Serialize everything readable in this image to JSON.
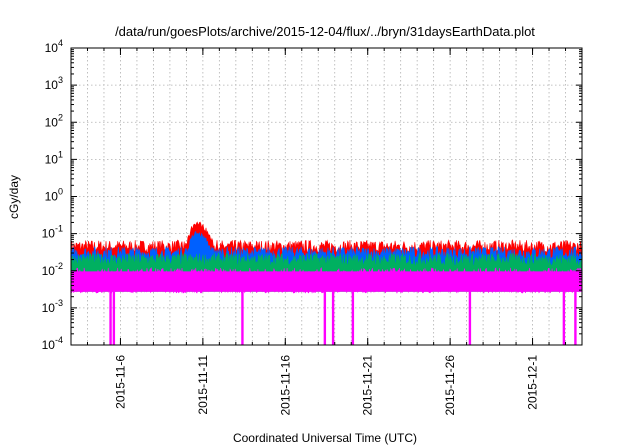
{
  "chart_data": {
    "type": "area",
    "title": "/data/run/goesPlots/archive/2015-12-04/flux/../bryn/31daysEarthData.plot",
    "xlabel": "Coordinated Universal Time (UTC)",
    "ylabel": "cGy/day",
    "yscale": "log",
    "ylim": [
      0.0001,
      10000
    ],
    "y_ticks": [
      {
        "value": 0.0001,
        "base": "10",
        "exp": "-4"
      },
      {
        "value": 0.001,
        "base": "10",
        "exp": "-3"
      },
      {
        "value": 0.01,
        "base": "10",
        "exp": "-2"
      },
      {
        "value": 0.1,
        "base": "10",
        "exp": "-1"
      },
      {
        "value": 1,
        "base": "10",
        "exp": "0"
      },
      {
        "value": 10,
        "base": "10",
        "exp": "1"
      },
      {
        "value": 100,
        "base": "10",
        "exp": "2"
      },
      {
        "value": 1000,
        "base": "10",
        "exp": "3"
      },
      {
        "value": 10000,
        "base": "10",
        "exp": "4"
      }
    ],
    "xlim": [
      "2015-11-03",
      "2015-12-04"
    ],
    "x_ticks": [
      "2015-11-6",
      "2015-11-11",
      "2015-11-16",
      "2015-11-21",
      "2015-11-26",
      "2015-12-1"
    ],
    "grid": true,
    "series": [
      {
        "color": "#ff0000",
        "baseline": 0.045,
        "peak": {
          "date": "2015-11-10.6",
          "value": 0.19
        }
      },
      {
        "color": "#0060ff",
        "baseline": 0.03,
        "peak": {
          "date": "2015-11-10.6",
          "value": 0.1
        }
      },
      {
        "color": "#00b060",
        "baseline": 0.02
      },
      {
        "color": "#ff00ff",
        "baseline": 0.008,
        "floor": 0.0028,
        "dropouts": [
          "2015-11-5.4",
          "2015-11-5.6",
          "2015-11-13.4",
          "2015-11-18.4",
          "2015-11-18.9",
          "2015-11-20.1",
          "2015-11-27.2",
          "2015-12-2.9",
          "2015-12-3.6"
        ]
      }
    ]
  }
}
